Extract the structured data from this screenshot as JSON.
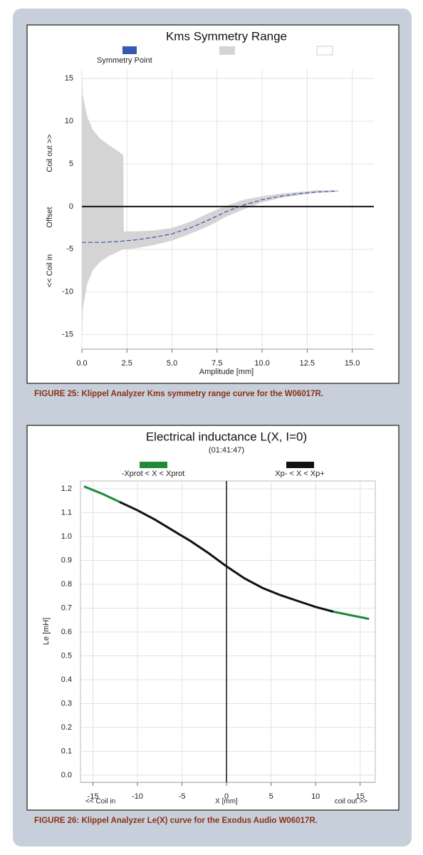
{
  "chart_data": [
    {
      "type": "line",
      "title": "Kms Symmetry Range",
      "xlabel": "Amplitude [mm]",
      "ylabel_parts": [
        "<< Coil in",
        "Offset",
        "Coil out >>"
      ],
      "xlim": [
        0,
        16.2
      ],
      "ylim": [
        -16.7,
        16.1
      ],
      "xticks": [
        {
          "value": 0,
          "label": "0.0"
        },
        2.5,
        {
          "value": 5,
          "label": "5.0"
        },
        7.5,
        {
          "value": 10,
          "label": "10.0"
        },
        12.5,
        {
          "value": 15,
          "label": "15.0"
        }
      ],
      "yticks": [
        15,
        10,
        5,
        0,
        -5,
        -10,
        -15
      ],
      "grid": true,
      "zero_line": true,
      "band": {
        "color": "#d4d4d4",
        "x": [
          0,
          0.05,
          0.3,
          0.6,
          1.0,
          1.5,
          2.0,
          2.3,
          2.32,
          3,
          4,
          5,
          6,
          7,
          8,
          9,
          10,
          11,
          12,
          13,
          14,
          14.2
        ],
        "upper": [
          15.8,
          13,
          10.5,
          9,
          8,
          7.2,
          6.5,
          6,
          -2.9,
          -2.9,
          -2.8,
          -2.5,
          -1.8,
          -0.8,
          0.1,
          0.8,
          1.2,
          1.5,
          1.7,
          1.9,
          1.9,
          1.9
        ],
        "lower": [
          -15.8,
          -12,
          -9,
          -7.5,
          -6.5,
          -5.8,
          -5.3,
          -5.0,
          -5.0,
          -4.9,
          -4.5,
          -4.0,
          -3.2,
          -2.3,
          -1.2,
          -0.3,
          0.5,
          1.0,
          1.3,
          1.6,
          1.7,
          1.8
        ]
      },
      "x": [
        0,
        1,
        2,
        3,
        4,
        5,
        6,
        7,
        8,
        9,
        10,
        11,
        12,
        13,
        14,
        14.2
      ],
      "series": [
        {
          "name": "Symmetry Point",
          "color": "#3a55b4",
          "dash": true,
          "values": [
            -4.2,
            -4.2,
            -4.1,
            -3.9,
            -3.6,
            -3.2,
            -2.5,
            -1.6,
            -0.6,
            0.2,
            0.8,
            1.2,
            1.5,
            1.7,
            1.8,
            1.8
          ]
        }
      ],
      "caption": "FIGURE 25: Klippel Analyzer Kms symmetry range curve for the W06017R."
    },
    {
      "type": "line",
      "title": "Electrical inductance L(X, I=0)",
      "subtitle": "(01:41:47)",
      "xlabel": "X [mm]",
      "ylabel": "Le [mH]",
      "x_left_note": "<< Coil in",
      "x_right_note": "coil out >>",
      "xlim": [
        -16.4,
        16.7
      ],
      "ylim": [
        -0.03,
        1.233
      ],
      "xticks": [
        -15,
        -10,
        -5,
        0,
        5,
        10,
        15
      ],
      "yticks": [
        {
          "value": 0,
          "label": "0.0"
        },
        0.1,
        0.2,
        0.3,
        0.4,
        0.5,
        0.6,
        0.7,
        0.8,
        0.9,
        {
          "value": 1,
          "label": "1.0"
        },
        1.1,
        1.2
      ],
      "grid": true,
      "zero_vline": true,
      "x": [
        -16,
        -14,
        -12,
        -10,
        -8,
        -6,
        -4,
        -2,
        0,
        2,
        4,
        6,
        8,
        10,
        12,
        14,
        16
      ],
      "series": [
        {
          "name": "-Xprot < X < Xprot",
          "color": "#1e8a3a",
          "values": [
            1.21,
            1.18,
            1.145,
            null,
            null,
            null,
            null,
            null,
            null,
            null,
            null,
            null,
            null,
            null,
            0.685,
            0.67,
            0.655
          ]
        },
        {
          "name": "Xp- < X < Xp+",
          "color": "#111111",
          "values": [
            null,
            null,
            1.145,
            1.11,
            1.07,
            1.025,
            0.98,
            0.93,
            0.875,
            0.825,
            0.785,
            0.755,
            0.73,
            0.705,
            0.685,
            null,
            null
          ]
        }
      ],
      "caption": "FIGURE 26: Klippel Analyzer Le(X) curve for the Exodus Audio W06017R."
    }
  ]
}
